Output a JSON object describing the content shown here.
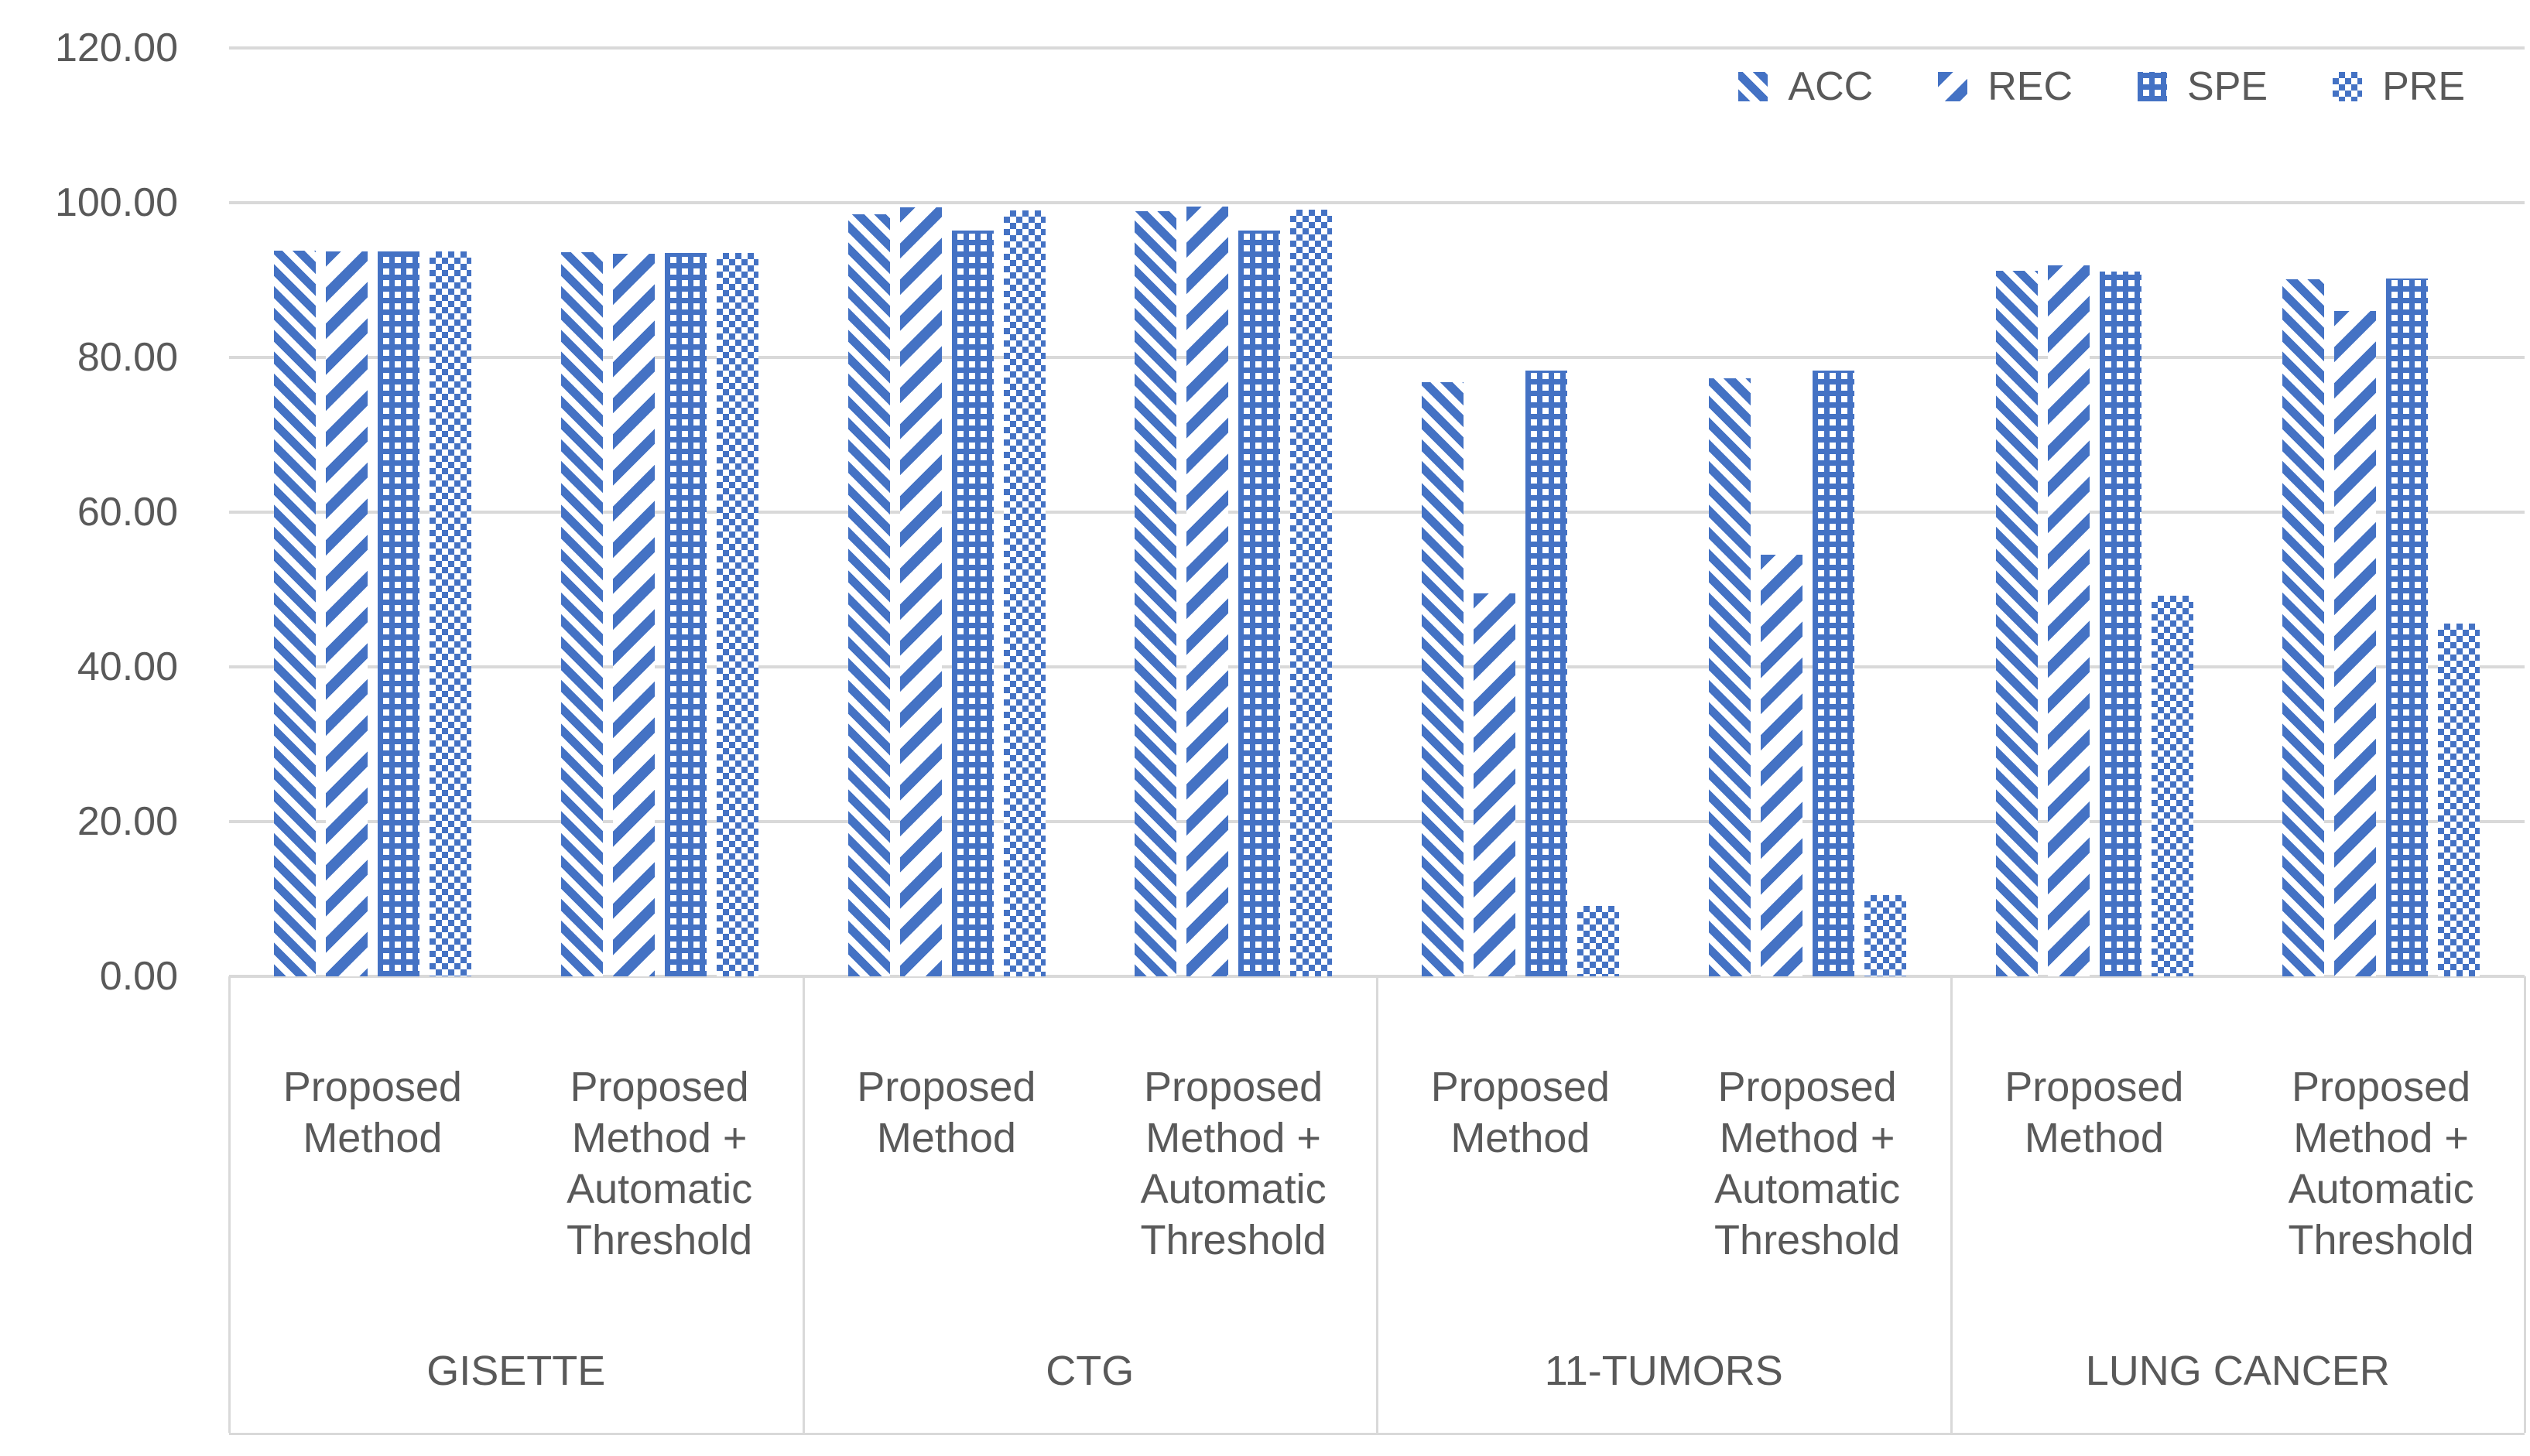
{
  "chart_data": {
    "type": "bar",
    "title": "",
    "xlabel": "",
    "ylabel": "",
    "ylim": [
      0,
      120
    ],
    "yticks": [
      120,
      100,
      80,
      60,
      40,
      20,
      0
    ],
    "ytick_labels": [
      "120.00",
      "100.00",
      "80.00",
      "60.00",
      "40.00",
      "20.00",
      "0.00"
    ],
    "grid": true,
    "legend_position": "top-right",
    "series_names": [
      "ACC",
      "REC",
      "SPE",
      "PRE"
    ],
    "series_patterns": {
      "ACC": "diagonal-down-stripes",
      "REC": "diagonal-up-bold-stripes",
      "SPE": "grid-lattice-dots",
      "PRE": "checkerboard"
    },
    "cluster_label_lines": [
      [
        "Proposed",
        "Method"
      ],
      [
        "Proposed",
        "Method +",
        "Automatic",
        "Threshold"
      ]
    ],
    "groups": [
      {
        "dataset": "GISETTE",
        "clusters": [
          {
            "label": "Proposed Method",
            "values": [
              93.8,
              93.7,
              93.7,
              93.7
            ]
          },
          {
            "label": "Proposed Method + Automatic Threshold",
            "values": [
              93.6,
              93.4,
              93.5,
              93.5
            ]
          }
        ]
      },
      {
        "dataset": "CTG",
        "clusters": [
          {
            "label": "Proposed Method",
            "values": [
              98.5,
              99.4,
              96.4,
              99.0
            ]
          },
          {
            "label": "Proposed Method + Automatic Threshold",
            "values": [
              98.9,
              99.5,
              96.4,
              99.1
            ]
          }
        ]
      },
      {
        "dataset": "11-TUMORS",
        "clusters": [
          {
            "label": "Proposed Method",
            "values": [
              76.8,
              49.5,
              78.3,
              9.1
            ]
          },
          {
            "label": "Proposed Method + Automatic Threshold",
            "values": [
              77.3,
              54.5,
              78.3,
              10.5
            ]
          }
        ]
      },
      {
        "dataset": "LUNG CANCER",
        "clusters": [
          {
            "label": "Proposed Method",
            "values": [
              91.2,
              91.9,
              91.1,
              49.2
            ]
          },
          {
            "label": "Proposed Method + Automatic Threshold",
            "values": [
              90.1,
              86.0,
              90.2,
              45.6
            ]
          }
        ]
      }
    ],
    "colors": {
      "bar_blue": "#4472C4",
      "gridline": "#D9D9D9",
      "axis_line": "#D9D9D9",
      "text": "#595959",
      "background": "#FFFFFF"
    }
  }
}
